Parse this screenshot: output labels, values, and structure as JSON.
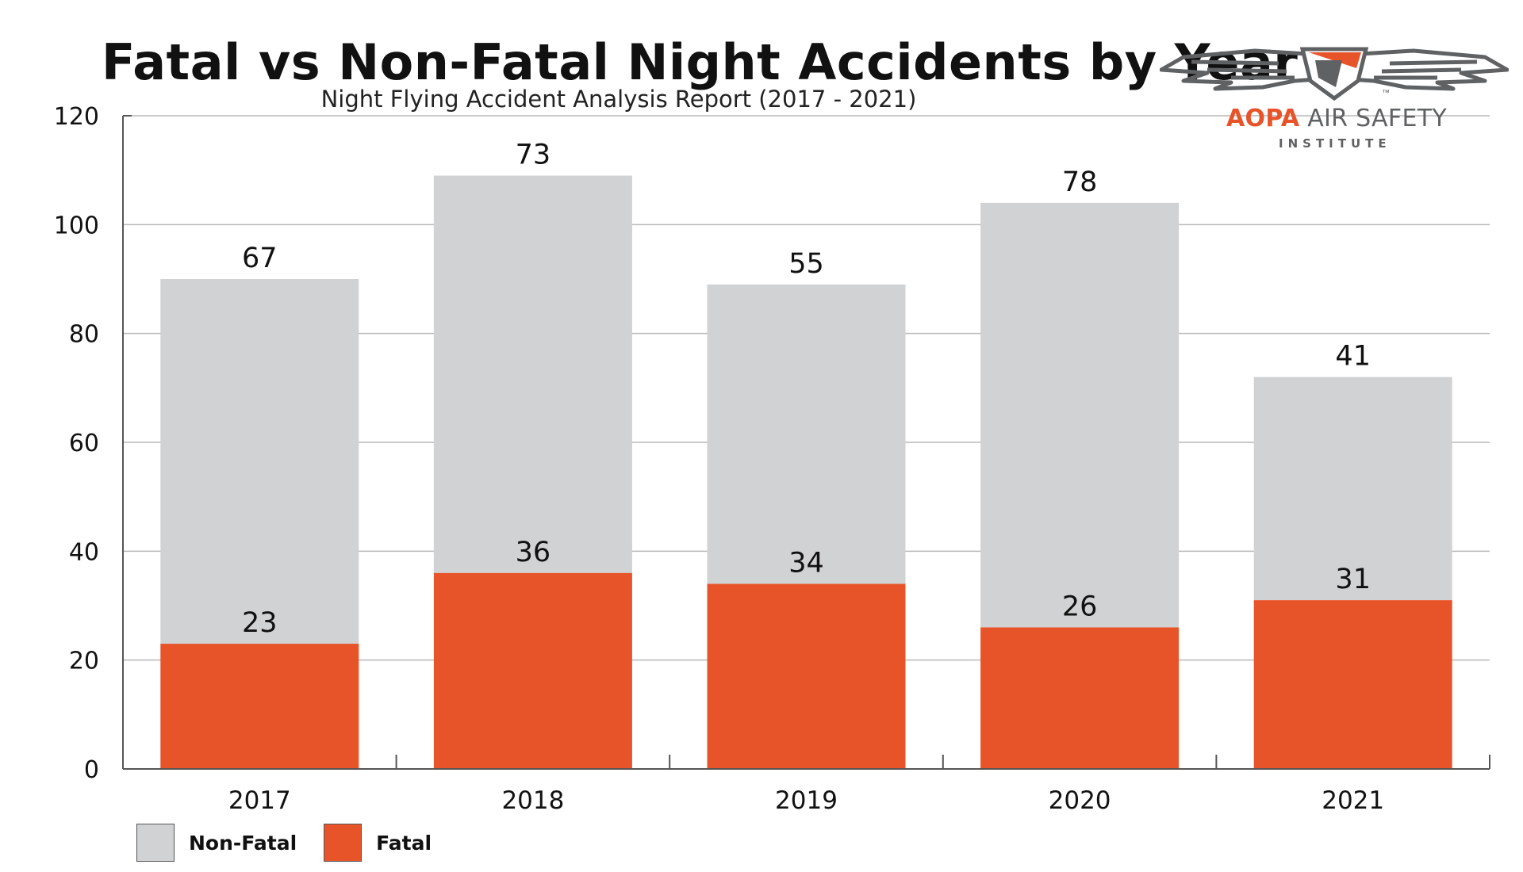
{
  "title": "Fatal vs Non-Fatal Night Accidents by Year",
  "subtitle": "Night Flying Accident Analysis Report (2017 - 2021)",
  "colors": {
    "fatal": "#e8542a",
    "non_fatal": "#d1d2d4",
    "grid": "#b9b9b9",
    "axis": "#555555"
  },
  "logo": {
    "brand_a": "AOPA",
    "brand_b": " AIR SAFETY",
    "sub": "INSTITUTE",
    "tm": "™",
    "icon": "wings-shield-icon"
  },
  "chart_data": {
    "type": "bar",
    "stacked": true,
    "categories": [
      "2017",
      "2018",
      "2019",
      "2020",
      "2021"
    ],
    "series": [
      {
        "name": "Fatal",
        "values": [
          23,
          36,
          34,
          26,
          31
        ]
      },
      {
        "name": "Non-Fatal",
        "values": [
          67,
          73,
          55,
          78,
          41
        ]
      }
    ],
    "ylim": [
      0,
      120
    ],
    "yticks": [
      0,
      20,
      40,
      60,
      80,
      100,
      120
    ],
    "grid": true,
    "legend": "bottom-left"
  }
}
